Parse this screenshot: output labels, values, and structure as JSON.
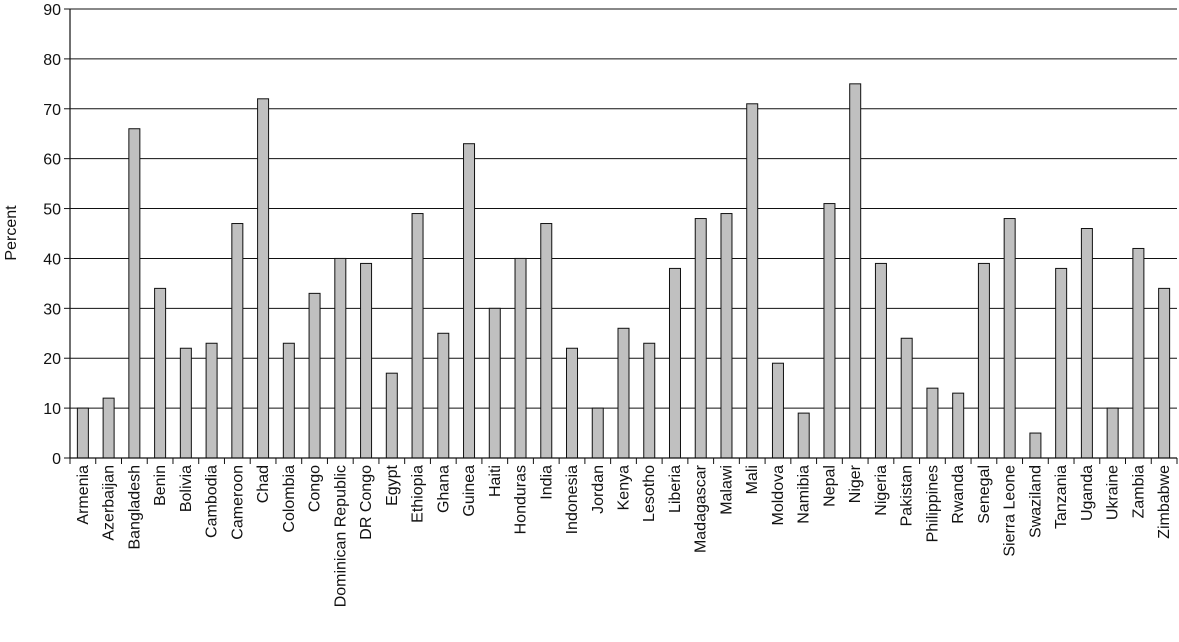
{
  "chart_data": {
    "type": "bar",
    "title": "",
    "xlabel": "",
    "ylabel": "Percent",
    "ylim": [
      0,
      90
    ],
    "yticks": [
      0,
      10,
      20,
      30,
      40,
      50,
      60,
      70,
      80,
      90
    ],
    "grid": true,
    "legend": "none",
    "bar_color": "#c0c0c0",
    "bar_edge_color": "#111111",
    "grid_color": "#111111",
    "categories": [
      "Armenia",
      "Azerbaijan",
      "Bangladesh",
      "Benin",
      "Bolivia",
      "Cambodia",
      "Cameroon",
      "Chad",
      "Colombia",
      "Congo",
      "Dominican Republic",
      "DR Congo",
      "Egypt",
      "Ethiopia",
      "Ghana",
      "Guinea",
      "Haiti",
      "Honduras",
      "India",
      "Indonesia",
      "Jordan",
      "Kenya",
      "Lesotho",
      "Liberia",
      "Madagascar",
      "Malawi",
      "Mali",
      "Moldova",
      "Namibia",
      "Nepal",
      "Niger",
      "Nigeria",
      "Pakistan",
      "Philippines",
      "Rwanda",
      "Senegal",
      "Sierra Leone",
      "Swaziland",
      "Tanzania",
      "Uganda",
      "Ukraine",
      "Zambia",
      "Zimbabwe"
    ],
    "values": [
      10,
      12,
      66,
      34,
      22,
      23,
      47,
      72,
      23,
      33,
      40,
      39,
      17,
      49,
      25,
      63,
      30,
      40,
      47,
      22,
      10,
      26,
      23,
      38,
      48,
      49,
      71,
      19,
      9,
      51,
      75,
      39,
      24,
      14,
      13,
      39,
      48,
      5,
      38,
      46,
      10,
      42,
      34
    ]
  }
}
